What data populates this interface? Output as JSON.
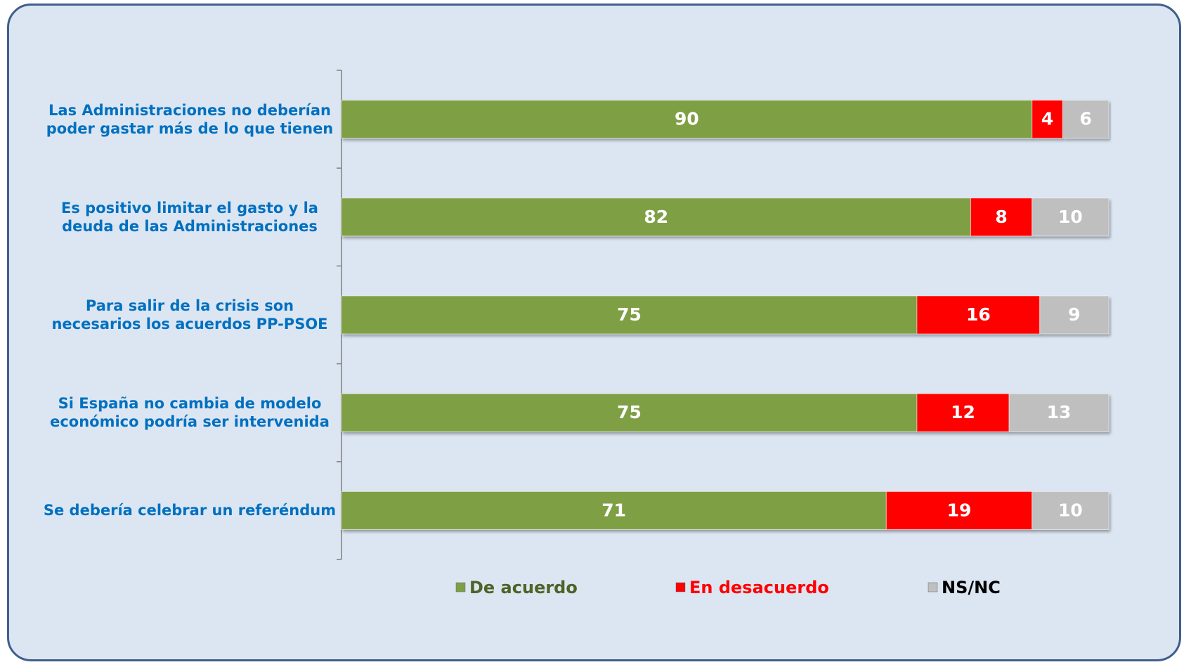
{
  "chart_data": {
    "type": "stacked-bar-horizontal",
    "categories": [
      "Las Administraciones no deberían poder gastar más de lo que tienen",
      "Es positivo limitar el gasto y la deuda de las Administraciones",
      "Para salir de la crisis son necesarios los acuerdos PP-PSOE",
      "Si España no cambia de modelo económico podría ser intervenida",
      "Se debería celebrar un referéndum"
    ],
    "series": [
      {
        "name": "De acuerdo",
        "color": "#7f9f45",
        "values": [
          90,
          82,
          75,
          75,
          71
        ]
      },
      {
        "name": "En desacuerdo",
        "color": "#ff0000",
        "values": [
          4,
          8,
          16,
          12,
          19
        ]
      },
      {
        "name": "NS/NC",
        "color": "#bfbfbf",
        "values": [
          6,
          10,
          9,
          13,
          10
        ]
      }
    ],
    "xlim": [
      0,
      100
    ],
    "legend": "bottom"
  }
}
